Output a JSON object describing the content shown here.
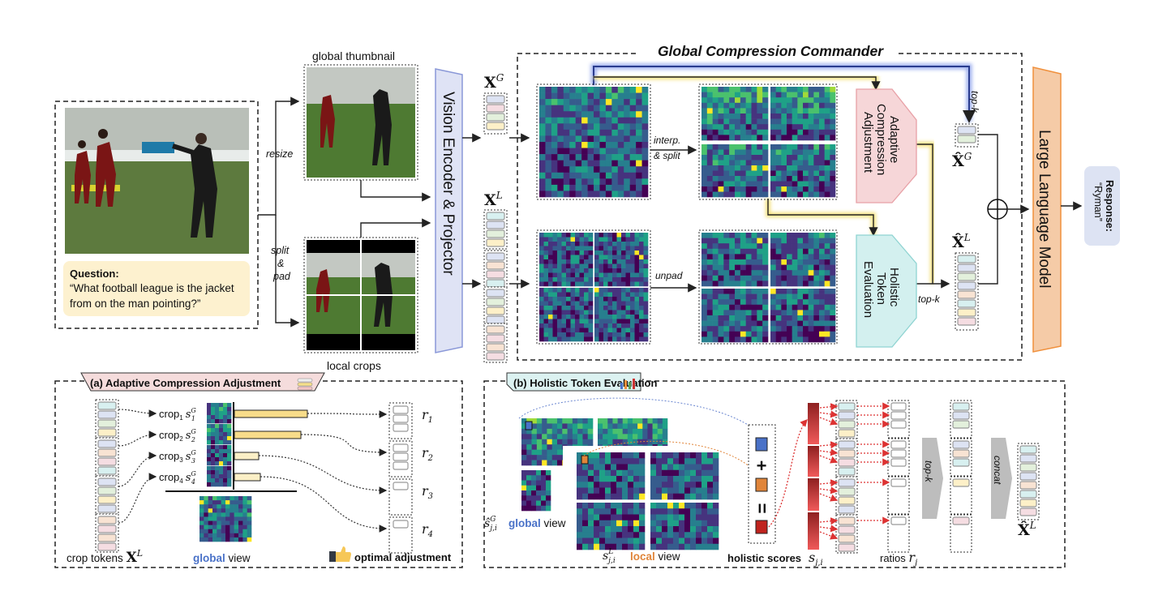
{
  "input": {
    "question_title": "Question:",
    "question_text_1": "“What football league is the jacket",
    "question_text_2": "from on the man pointing?”"
  },
  "labels": {
    "global_thumbnail": "global thumbnail",
    "local_crops": "local crops",
    "resize": "resize",
    "split": "split",
    "amp": "&",
    "pad": "pad",
    "vision_encoder": "Vision Encoder & Projector",
    "xg": "X",
    "xg_sup": "G",
    "xl": "X",
    "xl_sup": "L",
    "gcc_title": "Global Compression Commander",
    "interp": "interp.",
    "and_split": "& split",
    "unpad": "unpad",
    "aca_1": "Adaptive",
    "aca_2": "Compression",
    "aca_3": "Adjustment",
    "hte_1": "Holistic",
    "hte_2": "Token",
    "hte_3": "Evaluation",
    "topk": "top-k",
    "topk2": "top-k",
    "xhat_g": "X̂",
    "xhat_g_sup": "G",
    "xhat_l": "X̂",
    "xhat_l_sup": "L",
    "llm": "Large Language Model",
    "response_title": "Response:",
    "response_value": "“Ryman”"
  },
  "panel_a": {
    "title": "(a) Adaptive Compression Adjustment",
    "crops": [
      {
        "label": "crop",
        "sub": "1",
        "score": "s",
        "score_sub": "1",
        "score_sup": "G",
        "bar": 0.9,
        "ratio": "r",
        "ratio_sub": "1",
        "kept": 3
      },
      {
        "label": "crop",
        "sub": "2",
        "score": "s",
        "score_sub": "2",
        "score_sup": "G",
        "bar": 0.82,
        "ratio": "r",
        "ratio_sub": "2",
        "kept": 3
      },
      {
        "label": "crop",
        "sub": "3",
        "score": "s",
        "score_sub": "3",
        "score_sup": "G",
        "bar": 0.3,
        "ratio": "r",
        "ratio_sub": "3",
        "kept": 1
      },
      {
        "label": "crop",
        "sub": "4",
        "score": "s",
        "score_sub": "4",
        "score_sup": "G",
        "bar": 0.32,
        "ratio": "r",
        "ratio_sub": "4",
        "kept": 1
      }
    ],
    "crop_tokens": "crop tokens",
    "crop_tokens_sym": "X",
    "crop_tokens_sup": "L",
    "global_word": "global",
    "view_word": "view",
    "optimal": "optimal adjustment",
    "colors": {
      "global": "#4a72c8",
      "bar_high": "#f7dc8a",
      "bar_low": "#fbefc6"
    }
  },
  "panel_b": {
    "title": "(b) Holistic Token Evaluation",
    "global_sym": "ŝ",
    "global_sub": "j,i",
    "global_sup": "G",
    "global_word": "global",
    "view_word": "view",
    "local_sym": "s",
    "local_sub": "j,i",
    "local_sup": "L",
    "local_word": "local",
    "holistic_scores": "holistic scores",
    "score_sym": "s",
    "score_sub": "j,i",
    "ratios": "ratios",
    "ratio_sym": "r",
    "ratio_sub": "j",
    "plus": "+",
    "equals": "=",
    "topk": "top-k",
    "concat": "concat",
    "out_sym": "X̂",
    "out_sup": "L",
    "colors": {
      "global": "#4a72c8",
      "local": "#e0853a",
      "score": "#c0231e"
    }
  },
  "colors": {
    "encoder": "#dfe3f5",
    "llm": "#f5cba7",
    "aca": "#f6d6d8",
    "hte": "#d3f0ef",
    "question_bg": "#fdf1cf",
    "response_bg": "#dde3f3"
  }
}
